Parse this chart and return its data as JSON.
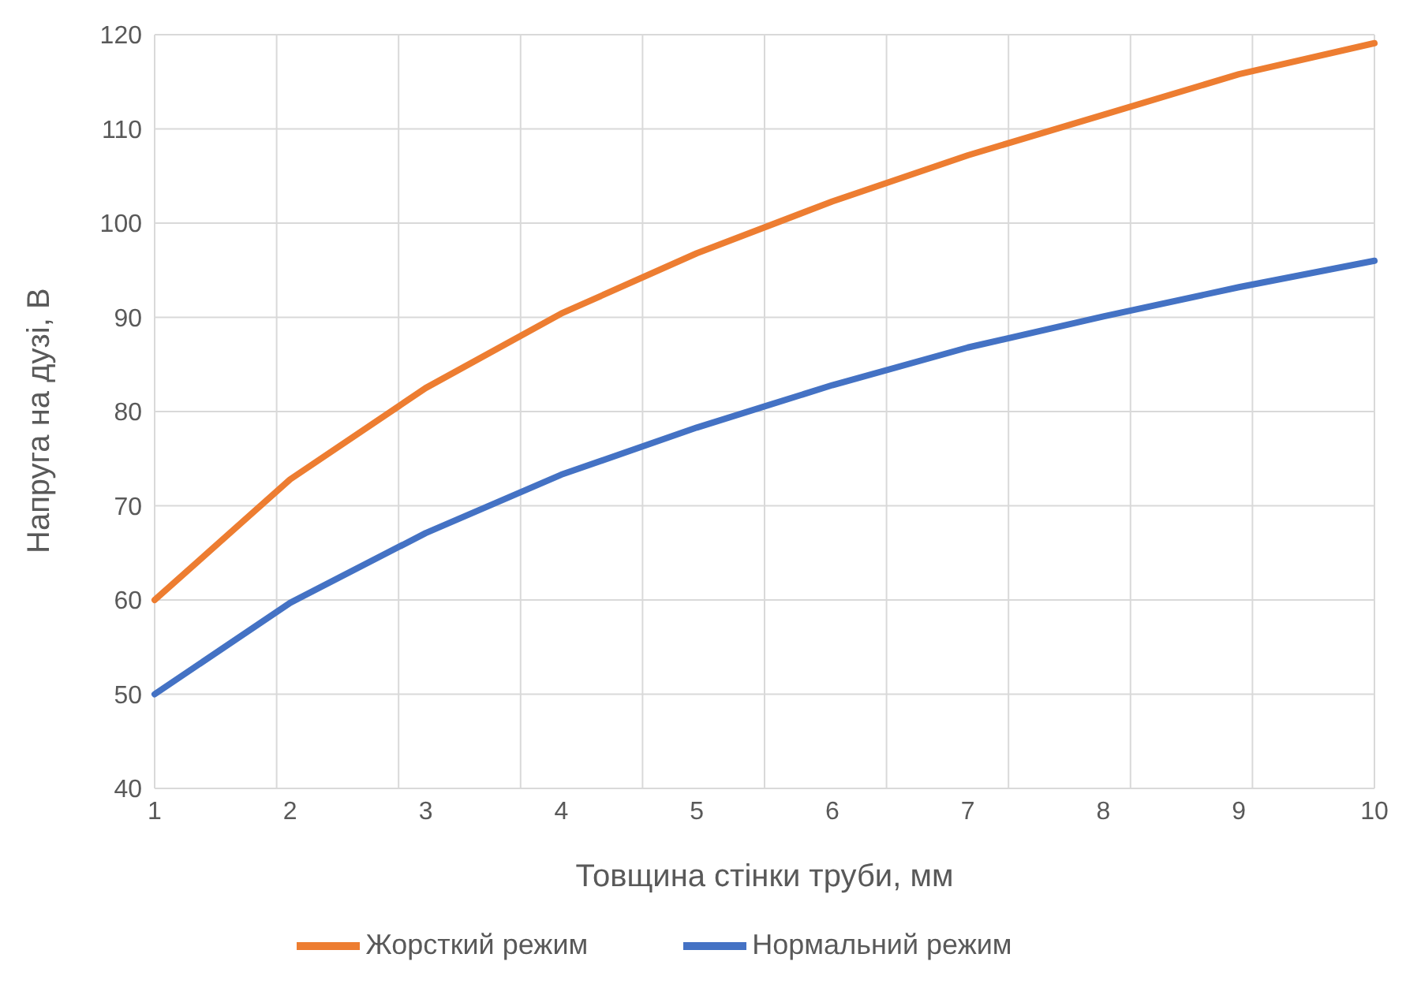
{
  "chart_data": {
    "type": "line",
    "xlabel": "Товщина стінки труби, мм",
    "ylabel": "Напруга на дузі, В",
    "categories": [
      "1",
      "2",
      "3",
      "4",
      "5",
      "6",
      "7",
      "8",
      "9",
      "10"
    ],
    "series": [
      {
        "name": "Нормальний режим",
        "color": "#4472c4",
        "values": [
          50,
          59.7,
          67.1,
          73.3,
          78.3,
          82.8,
          86.8,
          90.1,
          93.2,
          96
        ]
      },
      {
        "name": "Жорсткий режим",
        "color": "#ed7d31",
        "values": [
          60,
          72.8,
          82.5,
          90.4,
          96.8,
          102.3,
          107.2,
          111.5,
          115.8,
          119.1
        ]
      }
    ],
    "ylim": [
      40,
      120
    ],
    "yticks": [
      40,
      50,
      60,
      70,
      80,
      90,
      100,
      110,
      120
    ],
    "grid": true,
    "legend": "bottom",
    "marker": "none",
    "line_style": "solid"
  }
}
